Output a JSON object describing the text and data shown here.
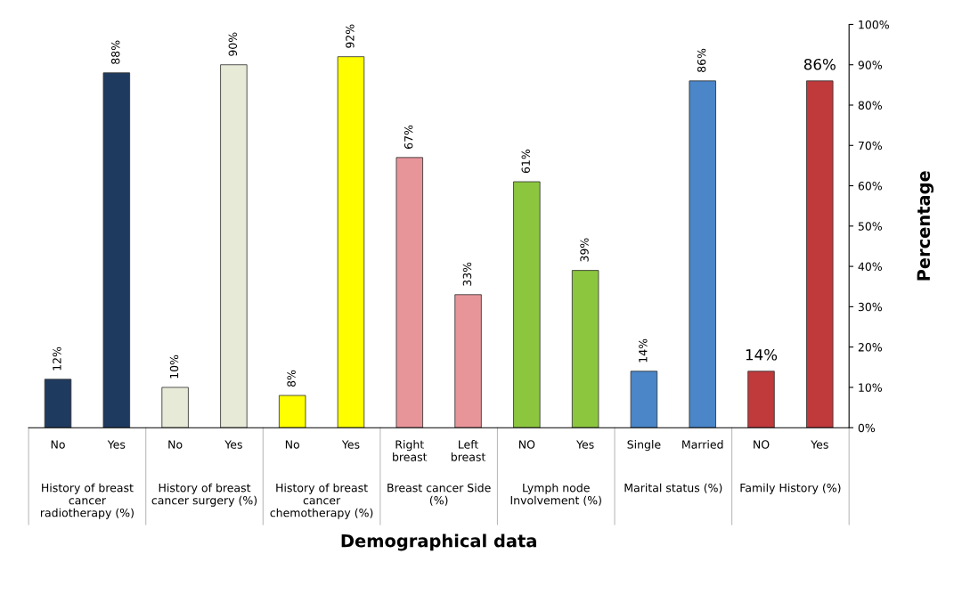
{
  "chart_data": {
    "type": "bar",
    "categories": [
      "No",
      "Yes",
      "No",
      "Yes",
      "No",
      "Yes",
      "Right\nbreast",
      "Left\nbreast",
      "NO",
      "Yes",
      "Single",
      "Married",
      "NO",
      "Yes"
    ],
    "values": [
      12,
      88,
      10,
      90,
      8,
      92,
      67,
      33,
      61,
      39,
      14,
      86,
      14,
      86
    ],
    "value_labels": [
      "12%",
      "88%",
      "10%",
      "90%",
      "8%",
      "92%",
      "67%",
      "33%",
      "61%",
      "39%",
      "14%",
      "86%",
      "14%",
      "86%"
    ],
    "colors": [
      "#1f3a5f",
      "#1f3a5f",
      "#e8ead8",
      "#e8ead8",
      "#ffff00",
      "#ffff00",
      "#e8959a",
      "#e8959a",
      "#8cc63f",
      "#8cc63f",
      "#4a86c8",
      "#4a86c8",
      "#c0393b",
      "#c0393b"
    ],
    "annotations": [
      "History of breast\ncancer\nradiotherapy (%)",
      "History of breast\ncancer surgery (%)",
      "History of breast\ncancer\nchemotherapy (%)",
      "Breast cancer Side\n(%)",
      "Lymph node\nInvolvement (%)",
      "Marital status (%)",
      "Family History (%)"
    ],
    "xlabel": "Demographical data",
    "ylabel": "Percentage",
    "ylim": [
      0,
      100
    ],
    "yticks": [
      {
        "value": 0,
        "label": "0%"
      },
      {
        "value": 10,
        "label": "10%"
      },
      {
        "value": 20,
        "label": "20%"
      },
      {
        "value": 30,
        "label": "30%"
      },
      {
        "value": 40,
        "label": "40%"
      },
      {
        "value": 50,
        "label": "50%"
      },
      {
        "value": 60,
        "label": "60%"
      },
      {
        "value": 70,
        "label": "70%"
      },
      {
        "value": 80,
        "label": "80%"
      },
      {
        "value": 90,
        "label": "90%"
      },
      {
        "value": 100,
        "label": "100%"
      }
    ]
  }
}
